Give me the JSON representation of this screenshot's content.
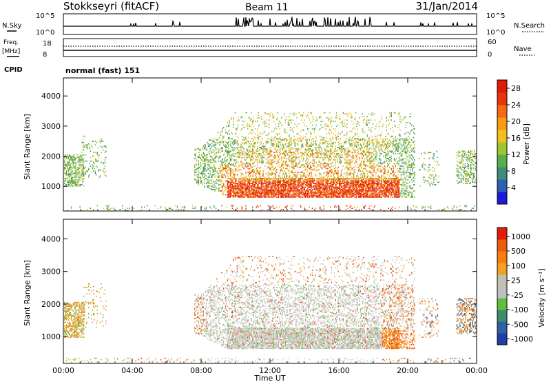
{
  "header": {
    "station": "Stokkseyri (fitACF)",
    "beam": "Beam 11",
    "date": "31/Jan/2014"
  },
  "noise_panel": {
    "left_label": "N.Sky",
    "right_label": "N.Search",
    "left_ticks": [
      "10^5",
      "10^0"
    ],
    "right_ticks": [
      "10^5",
      "10^0"
    ]
  },
  "freq_panel": {
    "left_label_1": "Freq.",
    "left_label_2": "[MHz]",
    "left_ticks": [
      "18",
      "8"
    ],
    "right_label": "Nave",
    "right_ticks": [
      "60",
      "0"
    ]
  },
  "cpid": {
    "label": "CPID",
    "value": "normal (fast) 151"
  },
  "chart_data": [
    {
      "type": "heatmap",
      "name": "power",
      "ylabel": "Slant Range [km]",
      "xlabel": "",
      "ylim": [
        180,
        4600
      ],
      "y_ticks": [
        "1000",
        "2000",
        "3000",
        "4000"
      ],
      "y_tick_values": [
        1000,
        2000,
        3000,
        4000
      ],
      "colorbar": {
        "label": "Power [dB]",
        "tick_labels": [
          "4",
          "8",
          "12",
          "16",
          "20",
          "24",
          "28"
        ],
        "tick_values": [
          4,
          8,
          12,
          16,
          20,
          24,
          28
        ],
        "range": [
          0,
          30
        ],
        "colors": [
          "#1b1bd8",
          "#2f5fb0",
          "#3f8c78",
          "#5aae4a",
          "#9cc531",
          "#f2c21a",
          "#f89a14",
          "#f36a10",
          "#e8330b",
          "#e01a0a"
        ]
      }
    },
    {
      "type": "heatmap",
      "name": "velocity",
      "ylabel": "Slant Range [km]",
      "xlabel": "Time UT",
      "ylim": [
        180,
        4600
      ],
      "y_ticks": [
        "1000",
        "2000",
        "3000",
        "4000"
      ],
      "y_tick_values": [
        1000,
        2000,
        3000,
        4000
      ],
      "x_ticks": [
        "00:00",
        "04:00",
        "08:00",
        "12:00",
        "16:00",
        "20:00",
        "00:00"
      ],
      "x_tick_hours": [
        0,
        4,
        8,
        12,
        16,
        20,
        24
      ],
      "colorbar": {
        "label": "Velocity [m s⁻¹]",
        "tick_labels": [
          "1000",
          "500",
          "100",
          "25",
          "-25",
          "-100",
          "-500",
          "-1000"
        ],
        "colors": [
          "#1e3fa8",
          "#2f5fa5",
          "#3d8c6a",
          "#5fbf3c",
          "#bfbfbf",
          "#c0c0b0",
          "#f4a020",
          "#f57e12",
          "#ec5a0e",
          "#e41b0b"
        ]
      }
    }
  ]
}
